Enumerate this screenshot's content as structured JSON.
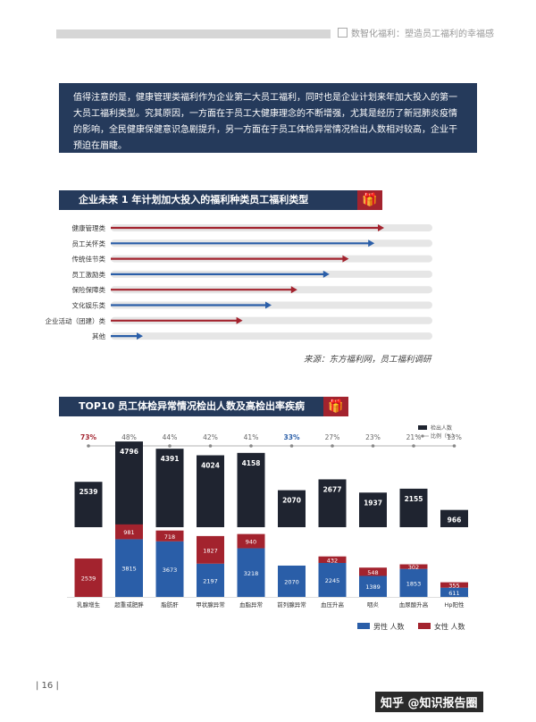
{
  "header": {
    "title": "数智化福利：塑造员工福利的幸福感"
  },
  "intro": {
    "text": "值得注意的是，健康管理类福利作为企业第二大员工福利，同时也是企业计划来年加大投入的第一大员工福利类型。究其原因，一方面在于员工大健康理念的不断增强，尤其是经历了新冠肺炎疫情的影响，全民健康保健意识急剧提升，另一方面在于员工体检异常情况检出人数相对较高，企业干预迫在眉睫。"
  },
  "colors": {
    "navy": "#253a5b",
    "red": "#a3232e",
    "blue": "#2a5ea8",
    "dark": "#1f2430",
    "track": "#e6e6e6"
  },
  "chart_data": [
    {
      "type": "bar",
      "orientation": "horizontal",
      "title": "企业未来 1 年计划加大投入的福利种类员工福利类型",
      "categories": [
        "健康管理类",
        "员工关怀类",
        "传统佳节类",
        "员工激励类",
        "保险保障类",
        "文化娱乐类",
        "企业活动（团建）类",
        "其他"
      ],
      "values": [
        85,
        82,
        74,
        68,
        58,
        50,
        41,
        10
      ],
      "series_colors": [
        "red",
        "blue",
        "red",
        "blue",
        "red",
        "blue",
        "red",
        "blue"
      ],
      "xlim": [
        0,
        100
      ],
      "source": "来源：东方福利网，员工福利调研"
    },
    {
      "type": "bar",
      "title": "TOP10 员工体检异常情况检出人数及高检出率疾病",
      "categories": [
        "乳腺增生",
        "超重或肥胖",
        "脂肪肝",
        "甲状腺异常",
        "血脂异常",
        "前列腺异常",
        "血压升高",
        "咽炎",
        "血尿酸升高",
        "Hp阳性"
      ],
      "total": [
        2539,
        4796,
        4391,
        4024,
        4158,
        2070,
        2677,
        1937,
        2155,
        966
      ],
      "ratio": [
        "73%",
        "48%",
        "44%",
        "42%",
        "41%",
        "33%",
        "27%",
        "23%",
        "21%",
        "13%"
      ],
      "ratio_values": [
        73,
        48,
        44,
        42,
        41,
        33,
        27,
        23,
        21,
        13
      ],
      "male": [
        0,
        3815,
        3673,
        2197,
        3218,
        2070,
        2245,
        1389,
        1853,
        611
      ],
      "female": [
        2539,
        981,
        718,
        1827,
        940,
        0,
        432,
        548,
        302,
        355
      ],
      "legend_top": [
        "检出人数",
        "比例（%）"
      ],
      "legend_bottom": [
        "男性 人数",
        "女性 人数"
      ]
    }
  ],
  "footer": {
    "page": "| 16 |",
    "logo": "知乎 @知识报告圈"
  }
}
